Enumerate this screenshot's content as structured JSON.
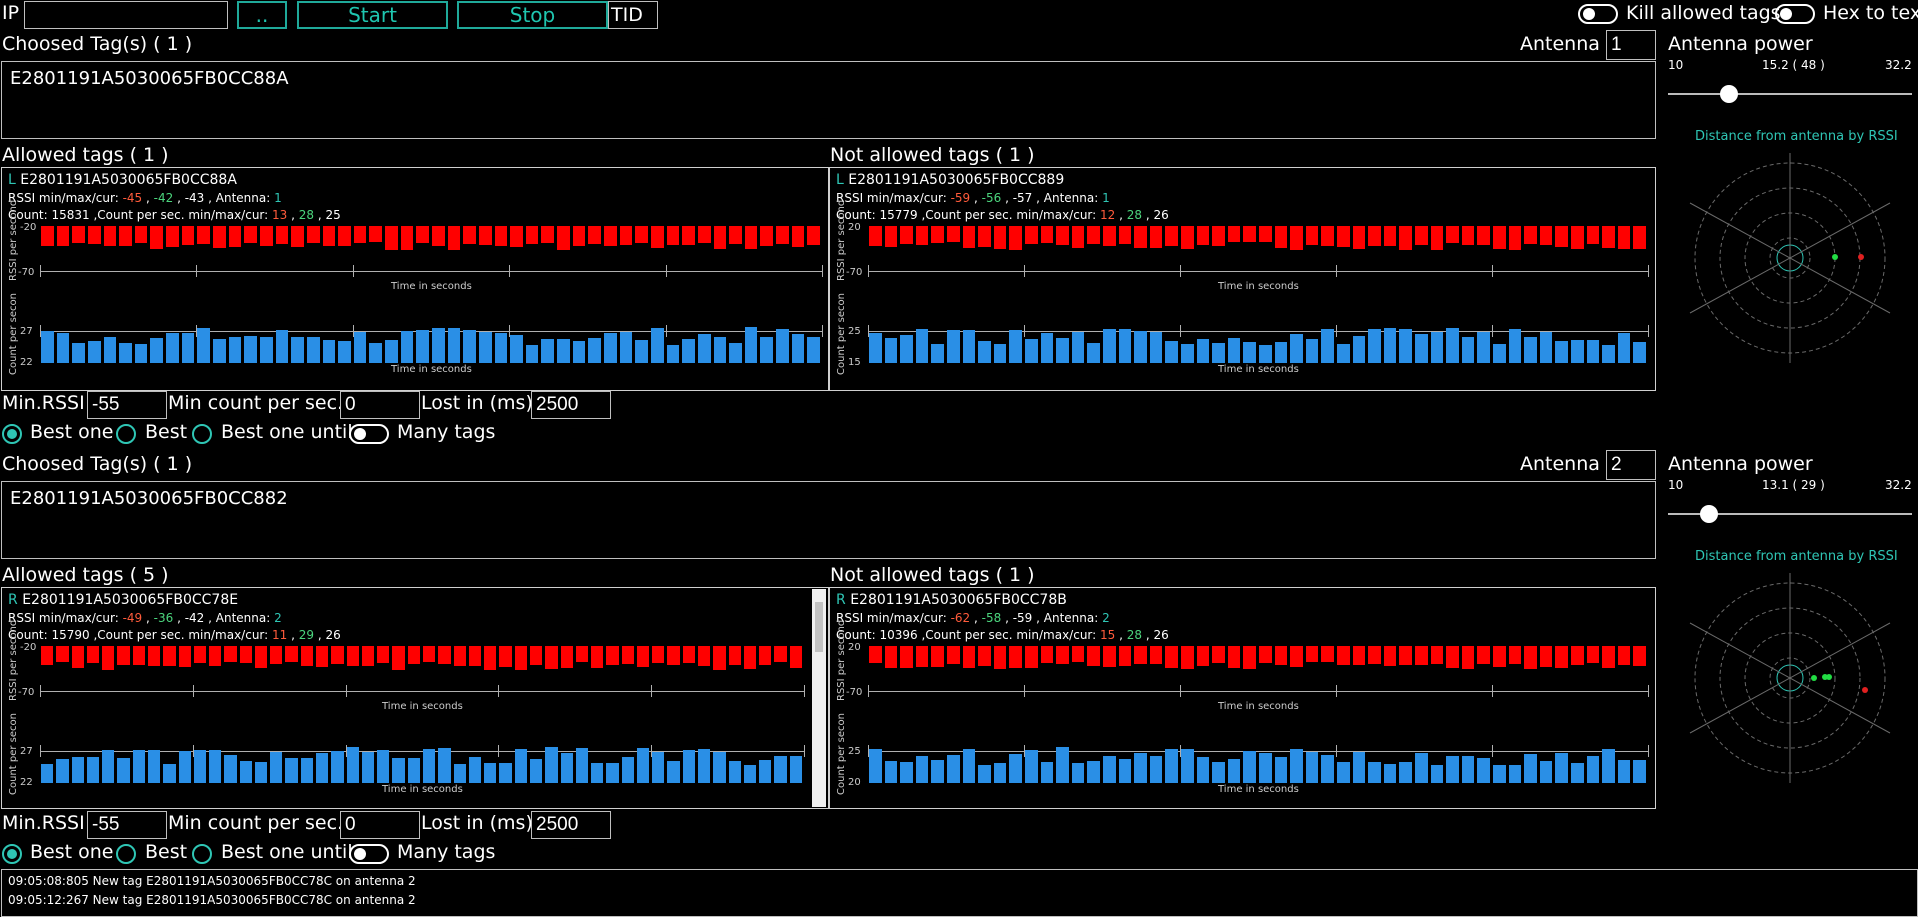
{
  "toolbar": {
    "ip_label": "IP",
    "ip_value": "",
    "browse_label": "..",
    "start_label": "Start",
    "stop_label": "Stop",
    "tid_label": "TID",
    "kill_label": "Kill allowed tags",
    "hex_label": "Hex to text"
  },
  "axis_text": {
    "time": "Time in seconds",
    "rssi": "RSSI per second",
    "count": "Count per secon"
  },
  "section1": {
    "chosen_title": "Choosed Tag(s) ( 1 )",
    "antenna_label": "Antenna",
    "antenna_value": "1",
    "chosen_tag": "E2801191A5030065FB0CC88A",
    "power_title": "Antenna power",
    "power_min": "10",
    "power_cur": "15.2  ( 48 )",
    "power_max": "32.2",
    "power_level": 0.23,
    "radar_title": "Distance from antenna by RSSI",
    "allowed_title": "Allowed tags ( 1 )",
    "notallowed_title": "Not allowed tags ( 1 )",
    "allowed": {
      "side": "L",
      "tag": "E2801191A5030065FB0CC88A",
      "rssi_prefix": "RSSI min/max/cur: ",
      "rssi_min": "-45",
      "rssi_max": "-42",
      "rssi_cur": "-43",
      "antenna_prefix": " , Antenna: ",
      "antenna": "1",
      "count_prefix": "Count: 15831 ,Count per sec. min/max/cur: ",
      "cnt_min": "13",
      "cnt_max": "28",
      "cnt_cur": "25",
      "rssi_ytop": "-20",
      "rssi_ybot": "-70",
      "cnt_ytop": "27",
      "cnt_ybot": "22"
    },
    "notallowed": {
      "side": "L",
      "tag": "E2801191A5030065FB0CC889",
      "rssi_prefix": "RSSI min/max/cur: ",
      "rssi_min": "-59",
      "rssi_max": "-56",
      "rssi_cur": "-57",
      "antenna_prefix": " , Antenna: ",
      "antenna": "1",
      "count_prefix": "Count: 15779 ,Count per sec. min/max/cur: ",
      "cnt_min": "12",
      "cnt_max": "28",
      "cnt_cur": "26",
      "rssi_ytop": "20",
      "rssi_ybot": "-70",
      "cnt_ytop": "25",
      "cnt_ybot": "15"
    },
    "min_rssi_label": "Min.RSSI",
    "min_rssi_value": "-55",
    "min_count_label": "Min count per sec.",
    "min_count_value": "0",
    "lost_label": "Lost in (ms)",
    "lost_value": "2500",
    "radio_best_one": "Best one",
    "radio_best": "Best",
    "radio_best_until": "Best one until",
    "many_tags": "Many tags"
  },
  "section2": {
    "chosen_title": "Choosed Tag(s) ( 1 )",
    "antenna_label": "Antenna",
    "antenna_value": "2",
    "chosen_tag": "E2801191A5030065FB0CC882",
    "power_title": "Antenna power",
    "power_min": "10",
    "power_cur": "13.1  ( 29 )",
    "power_max": "32.2",
    "power_level": 0.14,
    "radar_title": "Distance from antenna by RSSI",
    "allowed_title": "Allowed tags ( 5 )",
    "notallowed_title": "Not allowed tags ( 1 )",
    "allowed": {
      "side": "R",
      "tag": "E2801191A5030065FB0CC78E",
      "rssi_prefix": "RSSI min/max/cur: ",
      "rssi_min": "-49",
      "rssi_max": "-36",
      "rssi_cur": "-42",
      "antenna_prefix": " , Antenna: ",
      "antenna": "2",
      "count_prefix": "Count: 15790 ,Count per sec. min/max/cur: ",
      "cnt_min": "11",
      "cnt_max": "29",
      "cnt_cur": "26",
      "rssi_ytop": "-20",
      "rssi_ybot": "-70",
      "cnt_ytop": "27",
      "cnt_ybot": "22"
    },
    "notallowed": {
      "side": "R",
      "tag": "E2801191A5030065FB0CC78B",
      "rssi_prefix": "RSSI min/max/cur: ",
      "rssi_min": "-62",
      "rssi_max": "-58",
      "rssi_cur": "-59",
      "antenna_prefix": " , Antenna: ",
      "antenna": "2",
      "count_prefix": "Count: 10396 ,Count per sec. min/max/cur: ",
      "cnt_min": "15",
      "cnt_max": "28",
      "cnt_cur": "26",
      "rssi_ytop": "20",
      "rssi_ybot": "-70",
      "cnt_ytop": "25",
      "cnt_ybot": "20"
    },
    "min_rssi_label": "Min.RSSI",
    "min_rssi_value": "-55",
    "min_count_label": "Min count per sec.",
    "min_count_value": "0",
    "lost_label": "Lost in (ms)",
    "lost_value": "2500",
    "radio_best_one": "Best one",
    "radio_best": "Best",
    "radio_best_until": "Best one until",
    "many_tags": "Many tags"
  },
  "log": [
    "09:05:08:805  New tag E2801191A5030065FB0CC78C on antenna 2",
    "09:05:12:267  New tag E2801191A5030065FB0CC78C on antenna 2"
  ],
  "colors": {
    "accent": "#2fc6b5",
    "rssi_bar": "#ff0000",
    "count_bar": "#2a8fe6",
    "min_value": "#ff5b3b",
    "max_value": "#4bd57d"
  }
}
